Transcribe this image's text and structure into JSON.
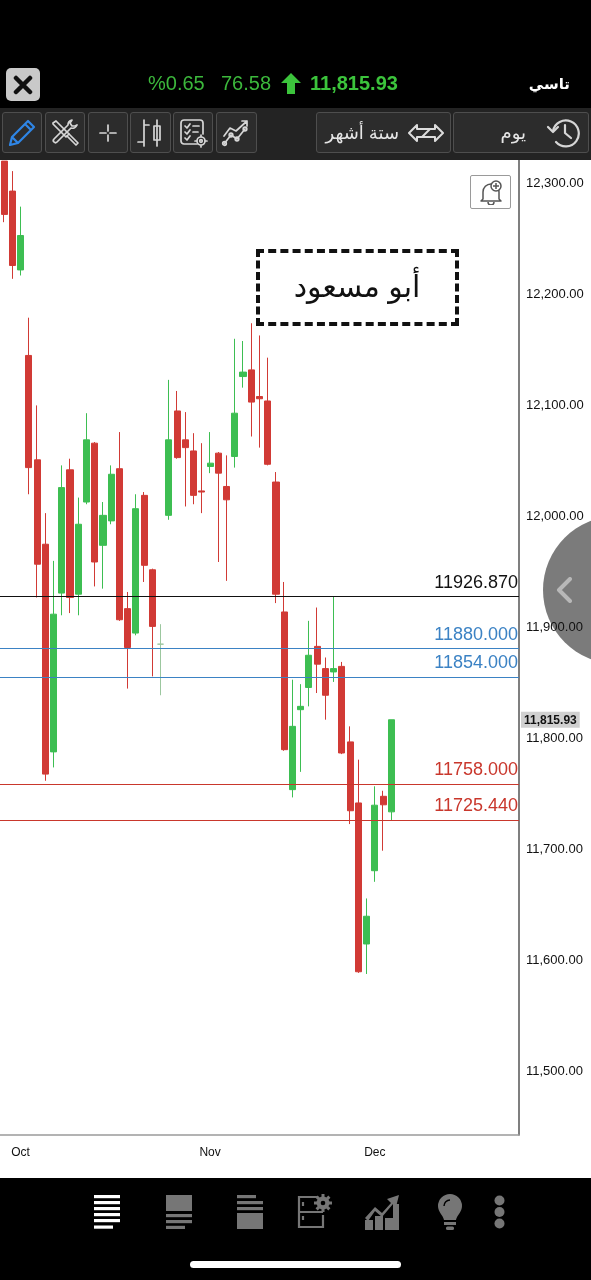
{
  "chart_data": {
    "type": "candlestick",
    "title": "تاسي",
    "categories": [
      null,
      null,
      "Oct",
      null,
      null,
      null,
      null,
      null,
      null,
      null,
      null,
      null,
      null,
      null,
      null,
      null,
      null,
      null,
      null,
      null,
      null,
      null,
      null,
      null,
      null,
      "Nov",
      null,
      null,
      null,
      null,
      null,
      null,
      null,
      null,
      null,
      null,
      null,
      null,
      null,
      null,
      null,
      null,
      null,
      null,
      null,
      "Dec",
      null,
      null,
      null,
      null,
      null,
      null,
      null,
      null,
      null,
      null,
      null,
      null,
      null,
      null,
      null,
      null,
      null
    ],
    "ohlc": [
      [
        12319,
        12319,
        12264,
        12271
      ],
      [
        12292,
        12310,
        12213,
        12225
      ],
      [
        12221,
        12278,
        12216,
        12252
      ],
      [
        12144,
        12178,
        12019,
        12043
      ],
      [
        12050,
        12099,
        11926,
        11956
      ],
      [
        11974,
        12002,
        11761,
        11767
      ],
      [
        11787,
        11959,
        11773,
        11911
      ],
      [
        11930,
        12045,
        11910,
        12025
      ],
      [
        12041,
        12051,
        11912,
        11926
      ],
      [
        11929,
        12016,
        11910,
        11992
      ],
      [
        12012,
        12092,
        12010,
        12068
      ],
      [
        12065,
        12066,
        11936,
        11958
      ],
      [
        11973,
        12012,
        11934,
        12000
      ],
      [
        11995,
        12045,
        11992,
        12037
      ],
      [
        12042,
        12075,
        11905,
        11906
      ],
      [
        11916,
        11931,
        11844,
        11881
      ],
      [
        11894,
        12019,
        11892,
        12006
      ],
      [
        12018,
        12021,
        11940,
        11955
      ],
      [
        11951,
        11952,
        11855,
        11900
      ],
      [
        11884,
        11902,
        11838,
        11884
      ],
      [
        12000,
        12122,
        11996,
        12068
      ],
      [
        12094,
        12112,
        12051,
        12052
      ],
      [
        12068,
        12093,
        12008,
        12061
      ],
      [
        12058,
        12074,
        12010,
        12018
      ],
      [
        12022,
        12065,
        12002,
        12021
      ],
      [
        12044,
        12075,
        12038,
        12047
      ],
      [
        12056,
        12057,
        11958,
        12038
      ],
      [
        12026,
        12054,
        11941,
        12014
      ],
      [
        12053,
        12159,
        12043,
        12092
      ],
      [
        12125,
        12157,
        12115,
        12129
      ],
      [
        12131,
        12173,
        12071,
        12102
      ],
      [
        12107,
        12162,
        12061,
        12105
      ],
      [
        12103,
        12142,
        12045,
        12046
      ],
      [
        12030,
        12039,
        11921,
        11929
      ],
      [
        11913,
        11940,
        11788,
        11789
      ],
      [
        11753,
        11852,
        11746,
        11810
      ],
      [
        11825,
        11848,
        11769,
        11828
      ],
      [
        11845,
        11905,
        11828,
        11874
      ],
      [
        11882,
        11917,
        11840,
        11866
      ],
      [
        11862,
        11872,
        11816,
        11838
      ],
      [
        11859,
        11926.87,
        11850,
        11862
      ],
      [
        11864,
        11868,
        11785,
        11786
      ],
      [
        11796,
        11810,
        11722,
        11734
      ],
      [
        11741,
        11780,
        11588,
        11589
      ],
      [
        11614,
        11655,
        11587,
        11639
      ],
      [
        11680,
        11756,
        11670,
        11739
      ],
      [
        11747,
        11752,
        11698,
        11739.35
      ],
      [
        11733,
        11815.93,
        11725.44,
        11815.93
      ],
      null,
      null,
      null,
      null,
      null,
      null,
      null,
      null,
      null,
      null,
      null,
      null,
      null,
      null,
      null
    ],
    "colors": [
      "#d13a35",
      "#d13a35",
      "#3dbe52",
      "#d13a35",
      "#d13a35",
      "#d13a35",
      "#3dbe52",
      "#3dbe52",
      "#d13a35",
      "#3dbe52",
      "#3dbe52",
      "#d13a35",
      "#3dbe52",
      "#3dbe52",
      "#d13a35",
      "#d13a35",
      "#3dbe52",
      "#d13a35",
      "#d13a35",
      "#9cc79f",
      "#3dbe52",
      "#d13a35",
      "#d13a35",
      "#d13a35",
      "#d13a35",
      "#3dbe52",
      "#d13a35",
      "#d13a35",
      "#3dbe52",
      "#3dbe52",
      "#d13a35",
      "#d13a35",
      "#d13a35",
      "#d13a35",
      "#d13a35",
      "#3dbe52",
      "#3dbe52",
      "#3dbe52",
      "#d13a35",
      "#d13a35",
      "#3dbe52",
      "#d13a35",
      "#d13a35",
      "#d13a35",
      "#3dbe52",
      "#3dbe52",
      "#d13a35",
      "#3dbe52",
      null,
      null,
      null,
      null,
      null,
      null,
      null,
      null,
      null,
      null,
      null,
      null,
      null,
      null,
      null
    ],
    "ylim": [
      11442,
      12320
    ],
    "yticks": [
      {
        "value": 11500,
        "label": "11,500.00"
      },
      {
        "value": 11600,
        "label": "11,600.00"
      },
      {
        "value": 11700,
        "label": "11,700.00"
      },
      {
        "value": 11800,
        "label": "11,800.00"
      },
      {
        "value": 11900,
        "label": "11,900.00"
      },
      {
        "value": 12000,
        "label": "12,000.00"
      },
      {
        "value": 12100,
        "label": "12,100.00"
      },
      {
        "value": 12200,
        "label": "12,200.00"
      },
      {
        "value": 12300,
        "label": "12,300.00"
      }
    ],
    "ref_lines": [
      {
        "axis": "y",
        "value": 11926.87,
        "label": "11926.870",
        "color": "#111111"
      },
      {
        "axis": "y",
        "value": 11880,
        "label": "11880.000",
        "color": "#3b82c4"
      },
      {
        "axis": "y",
        "value": 11854,
        "label": "11854.000",
        "color": "#3b82c4"
      },
      {
        "axis": "y",
        "value": 11758,
        "label": "11758.000",
        "color": "#c9372c"
      },
      {
        "axis": "y",
        "value": 11725.44,
        "label": "11725.440",
        "color": "#c9372c"
      }
    ],
    "annotations": [
      "%0.65",
      "76.58",
      "11,815.93",
      "ستة أشهر",
      "يوم",
      "أبو مسعود",
      "11,815.93"
    ]
  }
}
